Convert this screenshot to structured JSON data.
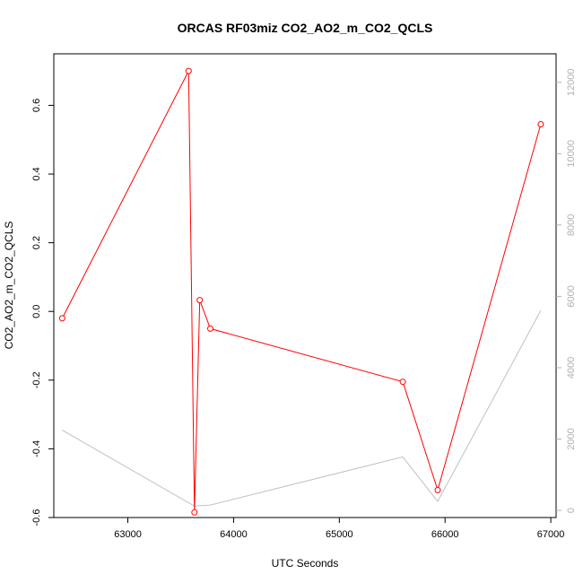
{
  "chart_data": {
    "type": "line",
    "title": "ORCAS RF03miz CO2_AO2_m_CO2_QCLS",
    "xlabel": "UTC Seconds",
    "ylabel": "CO2_AO2_m_CO2_QCLS",
    "xlim": [
      62300,
      67050
    ],
    "ylim": [
      -0.6,
      0.75
    ],
    "y2lim": [
      -200,
      12800
    ],
    "x_ticks": [
      63000,
      64000,
      65000,
      66000,
      67000
    ],
    "y_ticks": [
      -0.6,
      -0.4,
      -0.2,
      0.0,
      0.2,
      0.4,
      0.6
    ],
    "y_tick_labels": [
      "-0.6",
      "-0.4",
      "-0.2",
      "0.0",
      "0.2",
      "0.4",
      "0.6"
    ],
    "y2_ticks": [
      0,
      2000,
      4000,
      6000,
      8000,
      10000,
      12000
    ],
    "grid": false,
    "series": [
      {
        "color": "#ff0000",
        "axis": "left",
        "markers": true,
        "x": [
          62380,
          63575,
          63630,
          63680,
          63780,
          65600,
          65930,
          66905
        ],
        "y": [
          -0.02,
          0.7,
          -0.585,
          0.033,
          -0.05,
          -0.205,
          -0.52,
          0.545
        ]
      },
      {
        "color": "#c0c0c0",
        "axis": "right",
        "markers": false,
        "x": [
          62380,
          63630,
          63780,
          65600,
          65930,
          66905
        ],
        "y": [
          2250,
          120,
          150,
          1500,
          250,
          5600
        ]
      }
    ]
  }
}
